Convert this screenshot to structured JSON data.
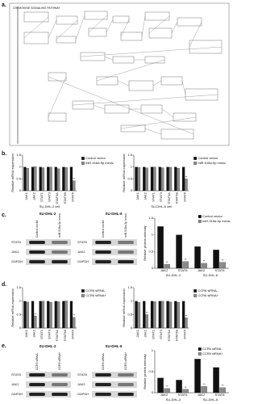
{
  "figure": {
    "panel_labels": [
      "a.",
      "b.",
      "c.",
      "d.",
      "e."
    ],
    "pathway_title": "CHEMOKINE SIGNALING PATHWAY",
    "blots": [
      {
        "cell": "SU-DHL-2",
        "columns": [
          "Control vector",
          "miR-518a-5p mimic"
        ],
        "rows": [
          "STAT6",
          "JAK2",
          "GAPDH"
        ]
      },
      {
        "cell": "SU-DHL-6",
        "columns": [
          "Control vector",
          "miR-518a-5p mimic"
        ],
        "rows": [
          "STAT6",
          "JAK2",
          "GAPDH"
        ]
      },
      {
        "cell": "SU-DHL-2",
        "columns": [
          "CCR6 siRNA-",
          "CCR6 siRNA+"
        ],
        "rows": [
          "STAT6",
          "JAK2",
          "GAPDH"
        ]
      },
      {
        "cell": "SU-DHL-6",
        "columns": [
          "CCR6 siRNA-",
          "CCR6 siRNA+"
        ],
        "rows": [
          "STAT6",
          "JAK2",
          "GAPDH"
        ]
      }
    ]
  },
  "chart_data": [
    {
      "type": "bar",
      "ylabel": "Relative mRNA expression",
      "xlabel": "SU-DHL-2 cell",
      "legend": "right",
      "categories": [
        "JAK1",
        "JAK2",
        "STAT1",
        "STAT3",
        "STAT5A",
        "STAT5B",
        "STAT6"
      ],
      "series": [
        {
          "name": "Control vector",
          "color": "#111111",
          "values": [
            1,
            1,
            1,
            1,
            1,
            1,
            1
          ]
        },
        {
          "name": "miR-518a-5p mimic",
          "color": "#8a8a8a",
          "values": [
            0.95,
            1.02,
            0.97,
            1.0,
            0.93,
            0.98,
            0.42
          ],
          "significance": [
            null,
            null,
            null,
            null,
            null,
            null,
            "**"
          ]
        }
      ],
      "ylim": [
        0,
        1.5
      ],
      "yticks": [
        0,
        0.5,
        1,
        1.5
      ]
    },
    {
      "type": "bar",
      "ylabel": "Relative mRNA expression",
      "xlabel": "SU-DHL-6 cell",
      "legend": "right",
      "categories": [
        "JAK1",
        "JAK2",
        "STAT1",
        "STAT3",
        "STAT5A",
        "STAT5B",
        "STAT6"
      ],
      "series": [
        {
          "name": "Control vector",
          "color": "#111111",
          "values": [
            1,
            1,
            1,
            1,
            1,
            1,
            1
          ]
        },
        {
          "name": "miR-518a-5p mimic",
          "color": "#8a8a8a",
          "values": [
            0.98,
            0.96,
            1.0,
            0.97,
            0.99,
            0.95,
            0.5
          ],
          "significance": [
            null,
            null,
            null,
            null,
            null,
            null,
            "**"
          ]
        }
      ],
      "ylim": [
        0,
        1.5
      ],
      "yticks": [
        0,
        0.5,
        1,
        1.5
      ]
    },
    {
      "type": "bar",
      "ylabel": "Relative protein intensity",
      "legend": "upper right",
      "categories": [
        "JAK2",
        "STAT6",
        "JAK2",
        "STAT6"
      ],
      "group_labels": [
        "SU-DHL-2",
        "SU-DHL-6"
      ],
      "series": [
        {
          "name": "Control vector",
          "color": "#111111",
          "values": [
            1.25,
            1.0,
            0.65,
            0.55
          ]
        },
        {
          "name": "miR-518a-5p mimic",
          "color": "#8a8a8a",
          "values": [
            0.12,
            0.2,
            0.15,
            0.18
          ],
          "significance": [
            "**",
            "**",
            "**",
            "**"
          ]
        }
      ],
      "ylim": [
        0,
        1.5
      ],
      "yticks": [
        0,
        0.5,
        1,
        1.5
      ]
    },
    {
      "type": "bar",
      "ylabel": "Relative mRNA expression",
      "legend": "right",
      "categories": [
        "JAK1",
        "JAK2",
        "STAT1",
        "STAT3",
        "STAT5A",
        "STAT5B",
        "STAT6"
      ],
      "series": [
        {
          "name": "CCR6 siRNA-",
          "color": "#111111",
          "values": [
            1,
            1,
            1,
            1,
            1,
            1,
            1
          ]
        },
        {
          "name": "CCR6 siRNA+",
          "color": "#8a8a8a",
          "values": [
            0.97,
            0.45,
            1.0,
            0.96,
            0.98,
            1.01,
            0.4
          ],
          "significance": [
            null,
            "**",
            null,
            null,
            null,
            null,
            "**"
          ]
        }
      ],
      "ylim": [
        0,
        1.5
      ],
      "yticks": [
        0,
        0.5,
        1,
        1.5
      ]
    },
    {
      "type": "bar",
      "ylabel": "Relative mRNA expression",
      "legend": "right",
      "categories": [
        "JAK1",
        "JAK2",
        "STAT1",
        "STAT3",
        "STAT5A",
        "STAT5B",
        "STAT6"
      ],
      "series": [
        {
          "name": "CCR6 siRNA-",
          "color": "#111111",
          "values": [
            1,
            1,
            1,
            1,
            1,
            1,
            1
          ]
        },
        {
          "name": "CCR6 siRNA+",
          "color": "#8a8a8a",
          "values": [
            0.95,
            0.5,
            0.98,
            1.0,
            0.97,
            0.96,
            0.38
          ],
          "significance": [
            null,
            "**",
            null,
            null,
            null,
            null,
            "**"
          ]
        }
      ],
      "ylim": [
        0,
        1.5
      ],
      "yticks": [
        0,
        0.5,
        1,
        1.5
      ]
    },
    {
      "type": "bar",
      "ylabel": "Relative protein intensity",
      "legend": "upper right",
      "categories": [
        "JAK2",
        "STAT6",
        "JAK2",
        "STAT6"
      ],
      "group_labels": [
        "SU-DHL-2",
        "SU-DHL-6"
      ],
      "series": [
        {
          "name": "CCR6 siRNA-",
          "color": "#111111",
          "values": [
            0.35,
            0.3,
            0.8,
            0.6
          ]
        },
        {
          "name": "CCR6 siRNA+",
          "color": "#8a8a8a",
          "values": [
            0.1,
            0.08,
            0.15,
            0.12
          ],
          "significance": [
            "**",
            "**",
            "**",
            "**"
          ]
        }
      ],
      "ylim": [
        0,
        1
      ],
      "yticks": [
        0,
        0.5,
        1
      ]
    }
  ]
}
